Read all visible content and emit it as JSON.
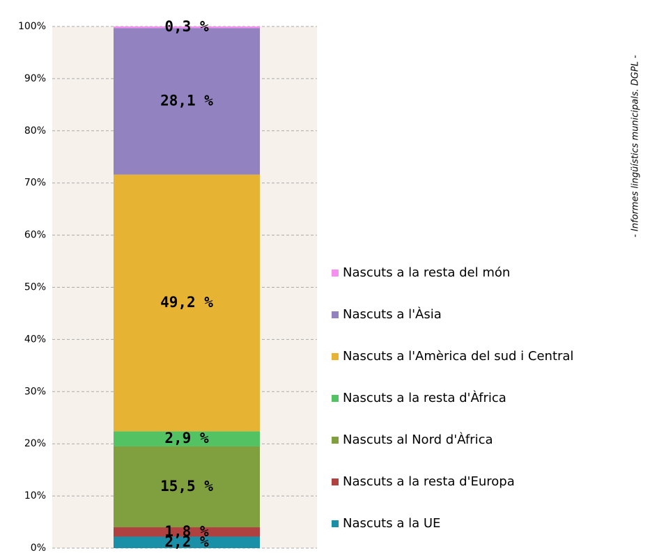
{
  "chart_data": {
    "type": "stacked_bar",
    "note": "- Informes lingüístics municipals. DGPL -",
    "categories": [
      null
    ],
    "ylim": [
      0,
      100
    ],
    "yticks": [
      {
        "value": 0,
        "label": "0%"
      },
      {
        "value": 10,
        "label": "10%"
      },
      {
        "value": 20,
        "label": "20%"
      },
      {
        "value": 30,
        "label": "30%"
      },
      {
        "value": 40,
        "label": "40%"
      },
      {
        "value": 50,
        "label": "50%"
      },
      {
        "value": 60,
        "label": "60%"
      },
      {
        "value": 70,
        "label": "70%"
      },
      {
        "value": 80,
        "label": "80%"
      },
      {
        "value": 90,
        "label": "90%"
      },
      {
        "value": 100,
        "label": "100%"
      }
    ],
    "grid": true,
    "series": [
      {
        "name": "Nascuts a la UE",
        "color": "#1a8fa8",
        "values": [
          2.2
        ],
        "value_labels": [
          "2,2 %"
        ]
      },
      {
        "name": "Nascuts a la resta d'Europa",
        "color": "#b04141",
        "values": [
          1.8
        ],
        "value_labels": [
          "1,8 %"
        ]
      },
      {
        "name": "Nascuts al Nord d'Àfrica",
        "color": "#80a040",
        "values": [
          15.5
        ],
        "value_labels": [
          "15,5 %"
        ]
      },
      {
        "name": "Nascuts a la resta d'Àfrica",
        "color": "#52c263",
        "values": [
          2.9
        ],
        "value_labels": [
          "2,9 %"
        ]
      },
      {
        "name": "Nascuts a l'Amèrica del sud i Central",
        "color": "#e6b333",
        "values": [
          49.2
        ],
        "value_labels": [
          "49,2 %"
        ]
      },
      {
        "name": "Nascuts a l'Àsia",
        "color": "#9282c0",
        "values": [
          28.1
        ],
        "value_labels": [
          "28,1 %"
        ]
      },
      {
        "name": "Nascuts a la resta del món",
        "color": "#f590f0",
        "values": [
          0.3
        ],
        "value_labels": [
          "0,3 %"
        ]
      }
    ]
  }
}
